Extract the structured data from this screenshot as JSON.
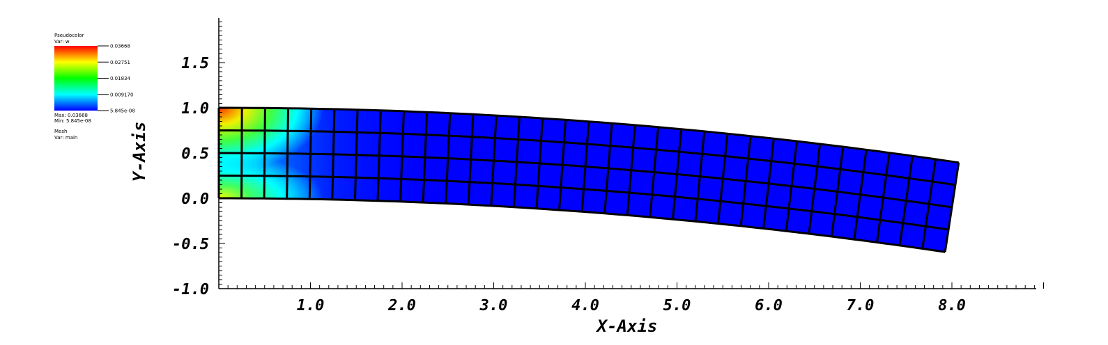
{
  "legend": {
    "title": "Pseudocolor",
    "variable": "Var: w",
    "scale_labels": [
      "0.03668",
      "0.02751",
      "0.01834",
      "0.009170",
      "5.845e-08"
    ],
    "max_label": "Max: 0.03668",
    "min_label": "Min: 5.845e-08",
    "mesh_title": "Mesh",
    "mesh_variable": "Var: main"
  },
  "chart_data": {
    "type": "heatmap",
    "title": "",
    "xlabel": "X-Axis",
    "ylabel": "Y-Axis",
    "xlim": [
      0,
      9.0
    ],
    "ylim": [
      -1.0,
      2.0
    ],
    "x_ticks": [
      "1.0",
      "2.0",
      "3.0",
      "4.0",
      "5.0",
      "6.0",
      "7.0",
      "8.0"
    ],
    "y_ticks": [
      "1.5",
      "1.0",
      "0.5",
      "0.0",
      "-0.5",
      "-1.0"
    ],
    "colorbar": {
      "variable": "w",
      "min": 5.845e-08,
      "max": 0.03668
    },
    "mesh": {
      "columns": 32,
      "rows": 4,
      "undeformed_length": 8.0,
      "undeformed_height": 1.0,
      "tip_deflection": -0.6,
      "high_values_near": "fixed end x=0 (corners)"
    },
    "colors": {
      "max": "#ff0000",
      "high": "#ffff00",
      "mid": "#00ff00",
      "low": "#00ffff",
      "min": "#0000ff"
    }
  }
}
